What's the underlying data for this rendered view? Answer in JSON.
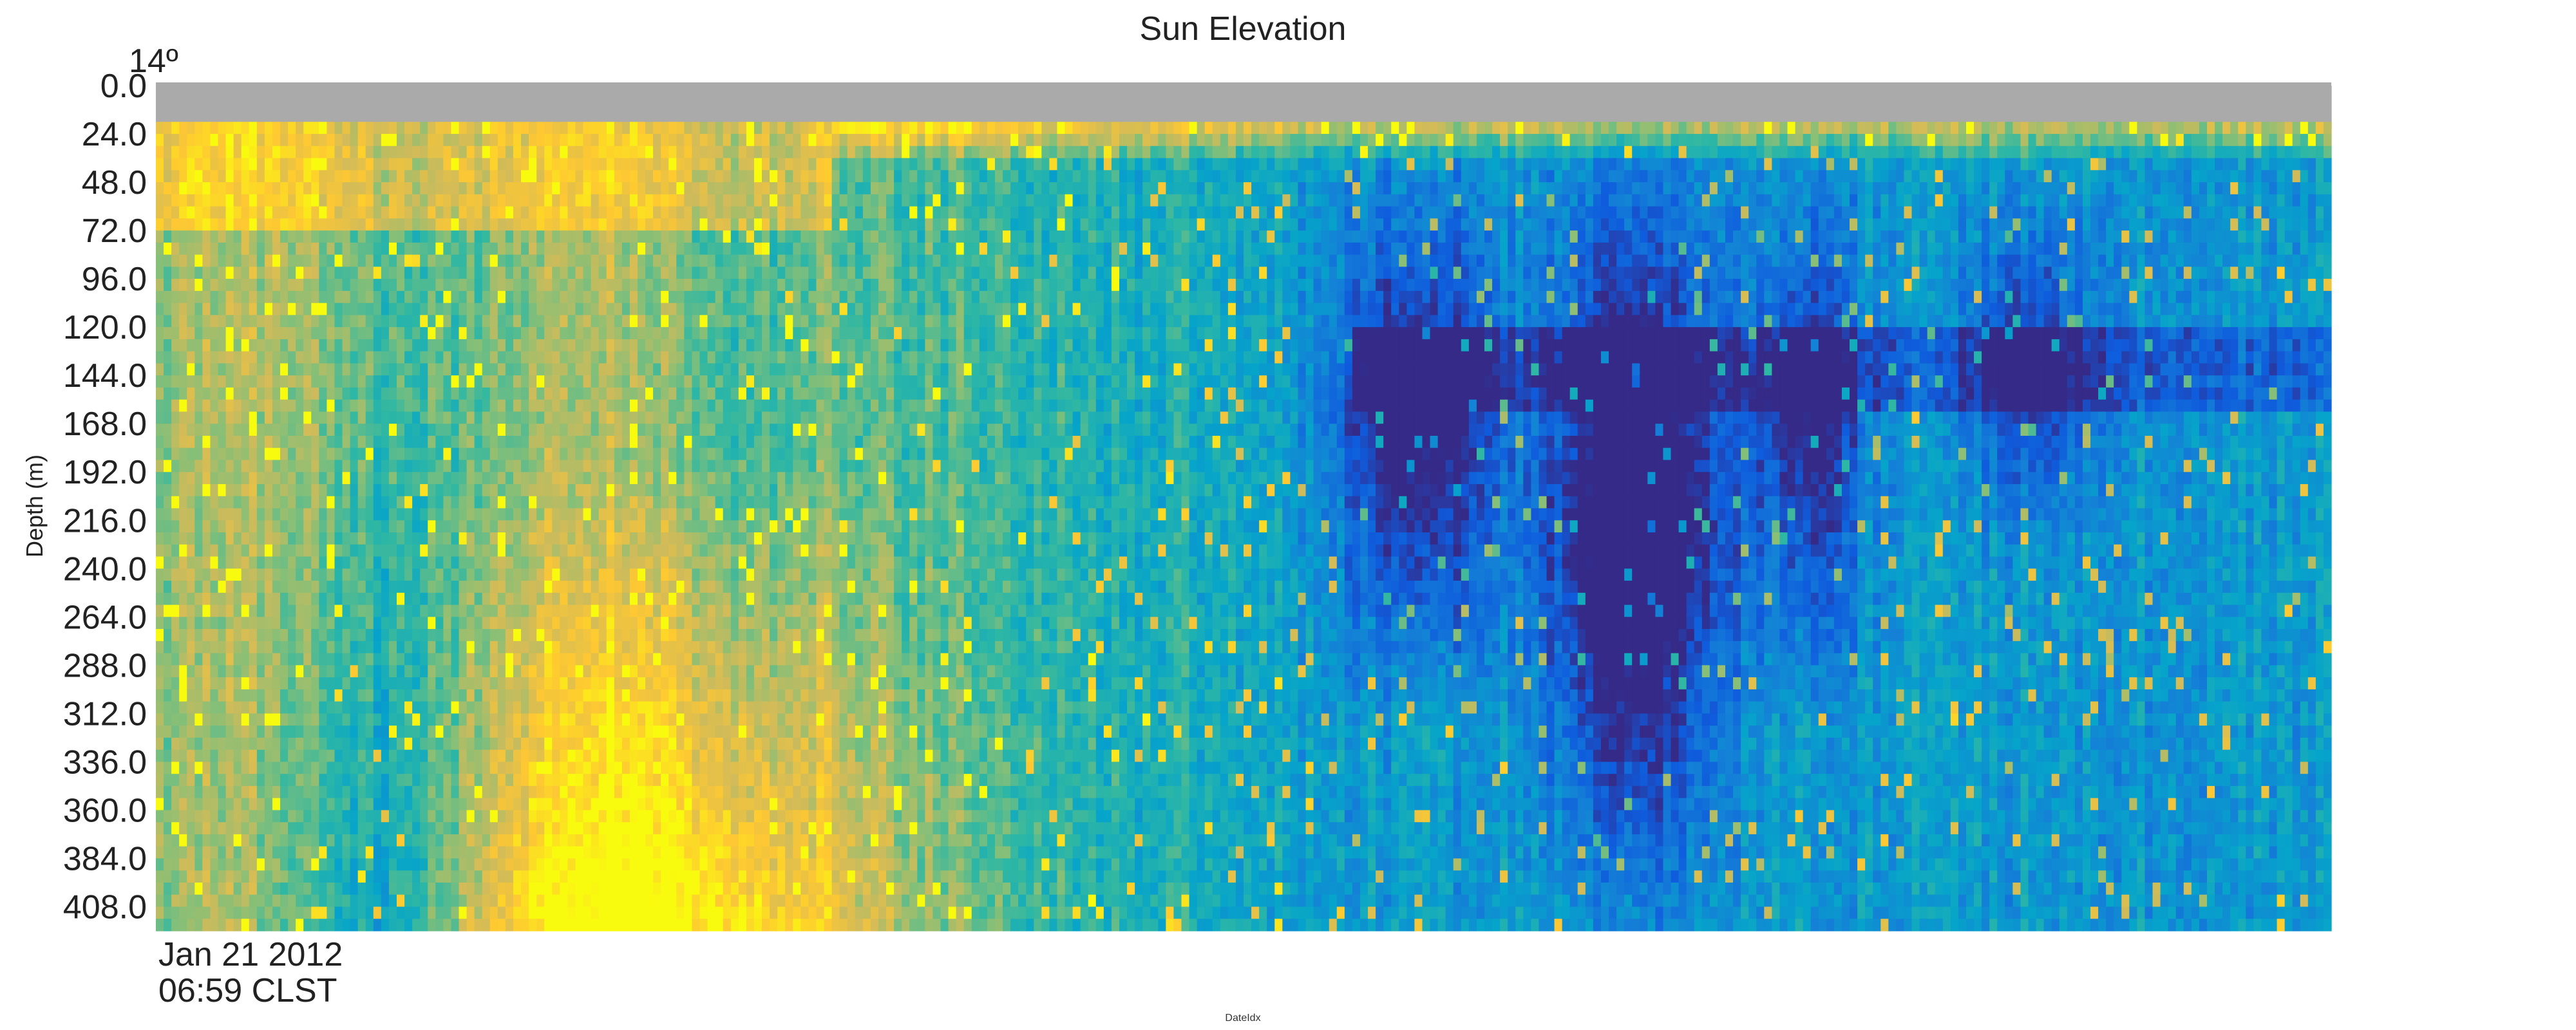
{
  "chart_data": {
    "type": "heatmap",
    "title": "Sun Elevation",
    "top_left_label": "14º",
    "xlabel": "DateIdx",
    "ylabel": "Depth (m)",
    "x_tick_labels": [
      {
        "date": "Jan 21 2012",
        "time": "06:59 CLST"
      }
    ],
    "y_ticks": [
      "0.0",
      "24.0",
      "48.0",
      "72.0",
      "96.0",
      "120.0",
      "144.0",
      "168.0",
      "192.0",
      "216.0",
      "240.0",
      "264.0",
      "288.0",
      "312.0",
      "336.0",
      "360.0",
      "384.0",
      "408.0"
    ],
    "y_range": [
      0,
      420
    ],
    "surface_blanked_depth": [
      0,
      21
    ],
    "n_time_columns": 280,
    "n_depth_bins": 70,
    "colormap": [
      "#352a87",
      "#0f5cdd",
      "#1481d6",
      "#06a4ca",
      "#2eb7a4",
      "#87bf77",
      "#d1bb59",
      "#fec832",
      "#f9fb0e"
    ],
    "missing_color": "#aaaaaa",
    "grid": false,
    "legend": "none"
  }
}
